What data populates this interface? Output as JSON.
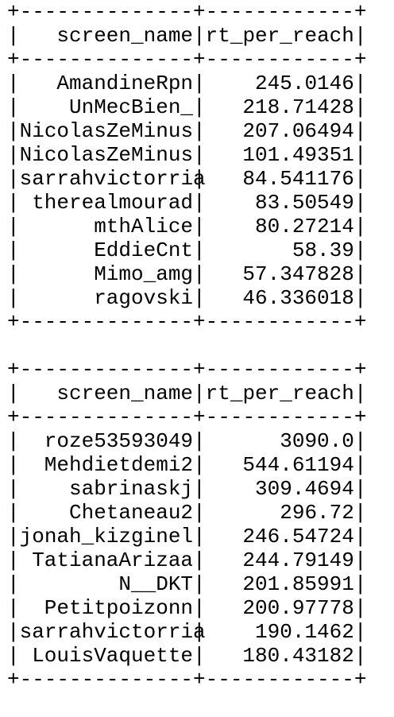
{
  "tables": [
    {
      "columns": [
        "screen_name",
        "rt_per_reach"
      ],
      "rows": [
        [
          "AmandineRpn",
          "245.0146"
        ],
        [
          "UnMecBien_",
          "218.71428"
        ],
        [
          "NicolasZeMinus",
          "207.06494"
        ],
        [
          "NicolasZeMinus",
          "101.49351"
        ],
        [
          "sarrahvictorria",
          "84.541176"
        ],
        [
          "therealmourad",
          "83.50549"
        ],
        [
          "mthAlice",
          "80.27214"
        ],
        [
          "EddieCnt",
          "58.39"
        ],
        [
          "Mimo_amg",
          "57.347828"
        ],
        [
          "ragovski",
          "46.336018"
        ]
      ]
    },
    {
      "columns": [
        "screen_name",
        "rt_per_reach"
      ],
      "rows": [
        [
          "roze53593049",
          "3090.0"
        ],
        [
          "Mehdietdemi2",
          "544.61194"
        ],
        [
          "sabrinaskj",
          "309.4694"
        ],
        [
          "Chetaneau2",
          "296.72"
        ],
        [
          "jonah_kizginel",
          "246.54724"
        ],
        [
          "TatianaArizaa",
          "244.79149"
        ],
        [
          "N__DKT",
          "201.85991"
        ],
        [
          "Petitpoizonn",
          "200.97778"
        ],
        [
          "sarrahvictorria",
          "190.1462"
        ],
        [
          "LouisVaquette",
          "180.43182"
        ]
      ]
    }
  ]
}
